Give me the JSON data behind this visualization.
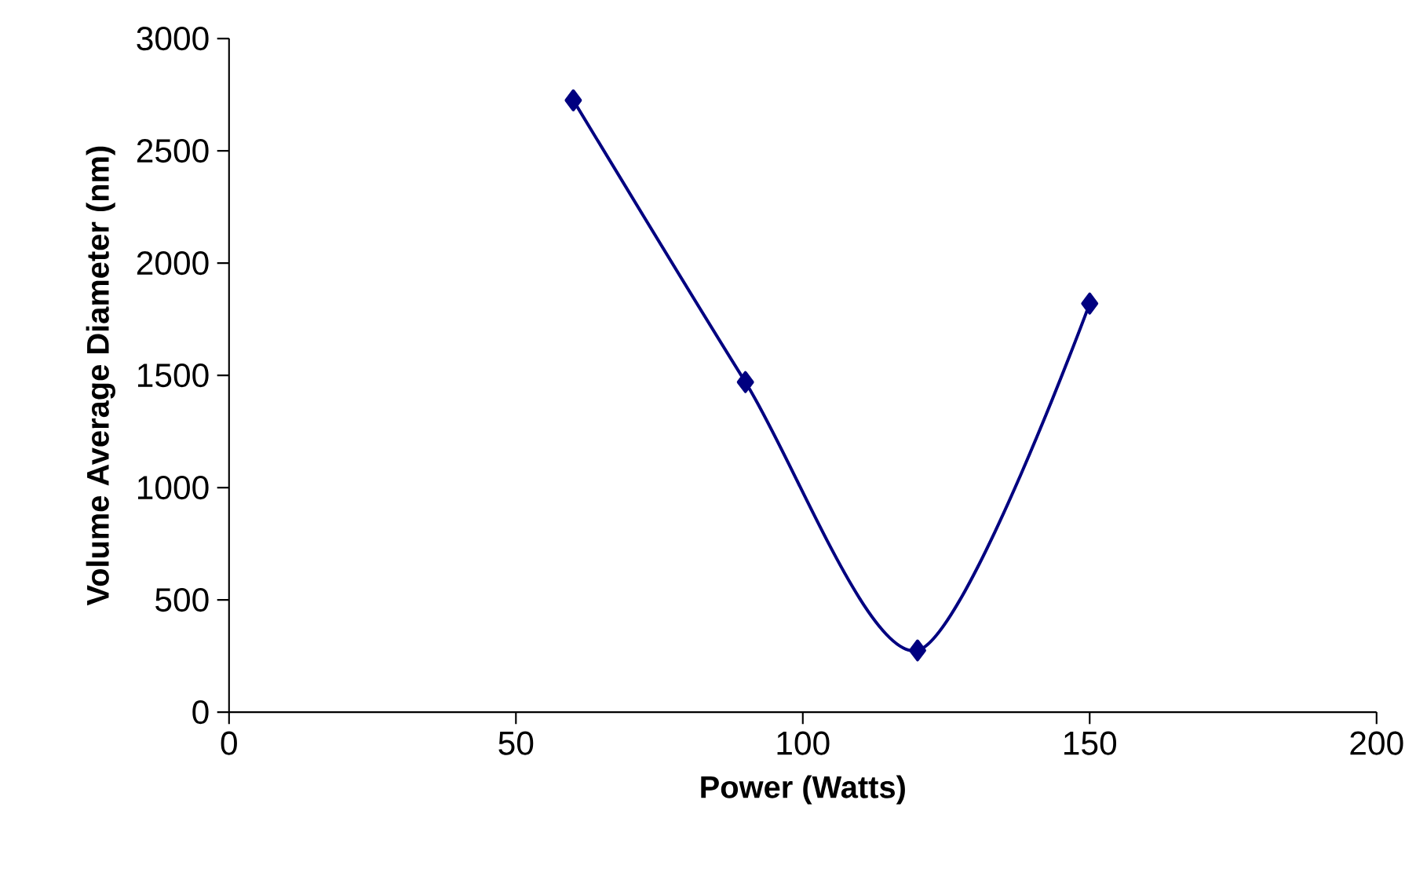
{
  "chart_data": {
    "type": "line",
    "xlabel": "Power (Watts)",
    "ylabel": "Volume Average Diameter (nm)",
    "x": [
      60,
      90,
      120,
      150
    ],
    "series": [
      {
        "color": "#000080",
        "values": [
          2725,
          1470,
          275,
          1820
        ]
      }
    ],
    "xlim": [
      0,
      200
    ],
    "xticks": [
      0,
      50,
      100,
      150,
      200
    ],
    "ylim": [
      0,
      3000
    ],
    "yticks": [
      0,
      500,
      1000,
      1500,
      2000,
      2500,
      3000
    ],
    "grid": false,
    "marker": "diamond",
    "line_style": "solid"
  }
}
